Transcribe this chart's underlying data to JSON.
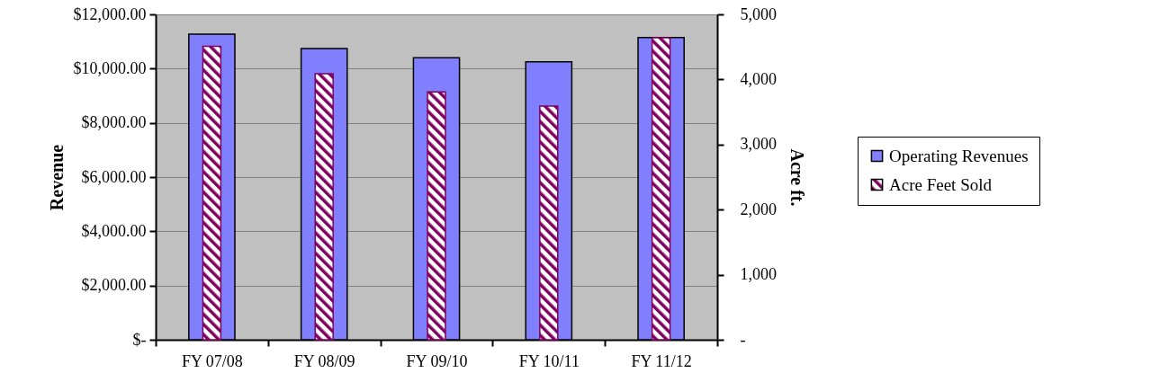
{
  "chart_data": {
    "type": "bar",
    "categories": [
      "FY 07/08",
      "FY 08/09",
      "FY 09/10",
      "FY 10/11",
      "FY 11/12"
    ],
    "series": [
      {
        "name": "Operating Revenues",
        "color": "#8080ff",
        "values": [
          11270,
          10740,
          10400,
          10250,
          11150
        ]
      },
      {
        "name": "Acre Feet Sold",
        "color": "#800060",
        "axis": "y2",
        "values": [
          4510,
          4090,
          3810,
          3590,
          4640
        ]
      }
    ],
    "ylabel": "Revenue",
    "y2label": "Acre ft.",
    "ylim": [
      0,
      12000
    ],
    "yticks": [
      {
        "value": 0,
        "label": "$-"
      },
      {
        "value": 2000,
        "label": "$2,000.00"
      },
      {
        "value": 4000,
        "label": "$4,000.00"
      },
      {
        "value": 6000,
        "label": "$6,000.00"
      },
      {
        "value": 8000,
        "label": "$8,000.00"
      },
      {
        "value": 10000,
        "label": "$10,000.00"
      },
      {
        "value": 12000,
        "label": "$12,000.00"
      }
    ],
    "y2lim": [
      0,
      5000
    ],
    "y2ticks": [
      {
        "value": 0,
        "label": "-"
      },
      {
        "value": 1000,
        "label": "1,000"
      },
      {
        "value": 2000,
        "label": "2,000"
      },
      {
        "value": 3000,
        "label": "3,000"
      },
      {
        "value": 4000,
        "label": "4,000"
      },
      {
        "value": 5000,
        "label": "5,000"
      }
    ],
    "grid": "y",
    "legend": "right"
  }
}
